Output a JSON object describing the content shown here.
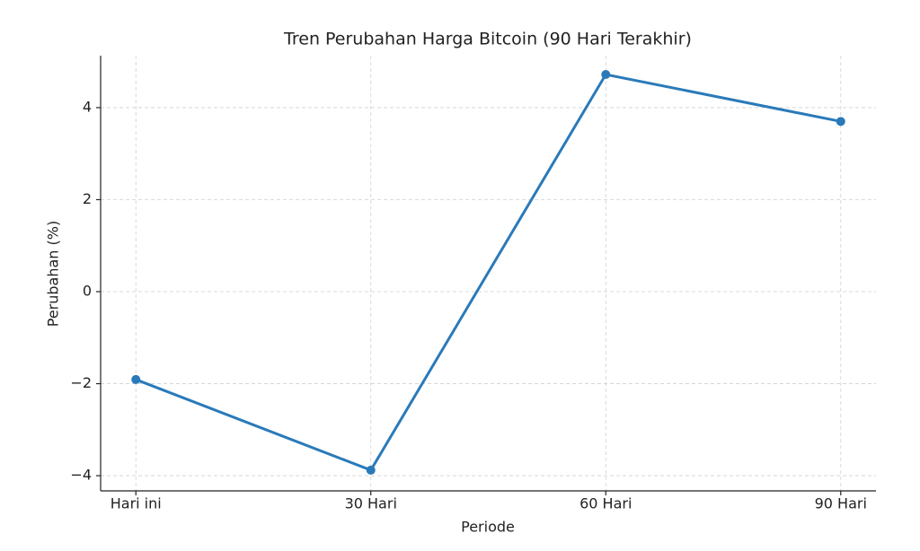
{
  "chart_data": {
    "type": "line",
    "title": "Tren Perubahan Harga Bitcoin (90 Hari Terakhir)",
    "x_label": "Periode",
    "y_label": "Perubahan (%)",
    "categories": [
      "Hari ini",
      "30 Hari",
      "60 Hari",
      "90 Hari"
    ],
    "values": [
      -1.91,
      -3.88,
      4.72,
      3.7
    ],
    "color": "#2a7ab9",
    "ylim": [
      -4.33,
      5.13
    ],
    "yticks": [
      {
        "value": -4,
        "label": "−4"
      },
      {
        "value": -2,
        "label": "−2"
      },
      0,
      2,
      4
    ],
    "grid": true
  }
}
